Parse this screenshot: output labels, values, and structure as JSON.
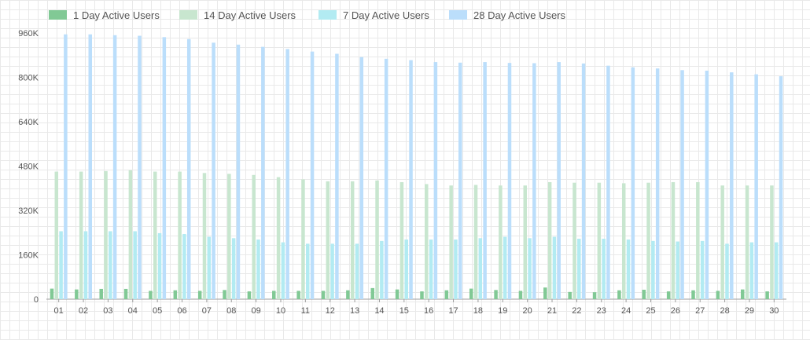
{
  "chart_data": {
    "type": "bar",
    "legend_position": "top-left",
    "grid": true,
    "categories": [
      "01",
      "02",
      "03",
      "04",
      "05",
      "06",
      "07",
      "08",
      "09",
      "10",
      "11",
      "12",
      "13",
      "14",
      "15",
      "16",
      "17",
      "18",
      "19",
      "20",
      "21",
      "22",
      "23",
      "24",
      "25",
      "26",
      "27",
      "28",
      "29",
      "30"
    ],
    "y_ticks": [
      "0",
      "160K",
      "320K",
      "480K",
      "640K",
      "800K",
      "960K"
    ],
    "ylim": [
      0,
      960000
    ],
    "series": [
      {
        "name": "1 Day Active Users",
        "color": "#81c995",
        "values": [
          38000,
          35000,
          37000,
          37000,
          30000,
          32000,
          30000,
          33000,
          28000,
          30000,
          30000,
          30000,
          32000,
          40000,
          35000,
          28000,
          32000,
          38000,
          33000,
          30000,
          42000,
          26000,
          25000,
          32000,
          34000,
          28000,
          32000,
          30000,
          35000,
          28000
        ]
      },
      {
        "name": "14 Day Active Users",
        "color": "#c8e6cf",
        "values": [
          460000,
          460000,
          462000,
          465000,
          460000,
          460000,
          455000,
          452000,
          448000,
          440000,
          432000,
          425000,
          425000,
          428000,
          422000,
          415000,
          410000,
          412000,
          410000,
          410000,
          422000,
          420000,
          420000,
          418000,
          420000,
          422000,
          422000,
          410000,
          410000,
          410000
        ]
      },
      {
        "name": "7 Day Active Users",
        "color": "#b2ebf2",
        "values": [
          245000,
          245000,
          245000,
          245000,
          238000,
          235000,
          225000,
          220000,
          215000,
          205000,
          200000,
          200000,
          200000,
          210000,
          215000,
          215000,
          215000,
          220000,
          225000,
          220000,
          225000,
          218000,
          218000,
          215000,
          210000,
          208000,
          210000,
          200000,
          205000,
          205000
        ]
      },
      {
        "name": "28 Day Active Users",
        "color": "#bbdefb",
        "values": [
          955000,
          955000,
          952000,
          950000,
          945000,
          938000,
          925000,
          918000,
          910000,
          902000,
          893000,
          885000,
          873000,
          867000,
          862000,
          855000,
          853000,
          855000,
          852000,
          851000,
          855000,
          850000,
          842000,
          836000,
          832000,
          826000,
          824000,
          818000,
          811000,
          804000
        ]
      }
    ]
  }
}
